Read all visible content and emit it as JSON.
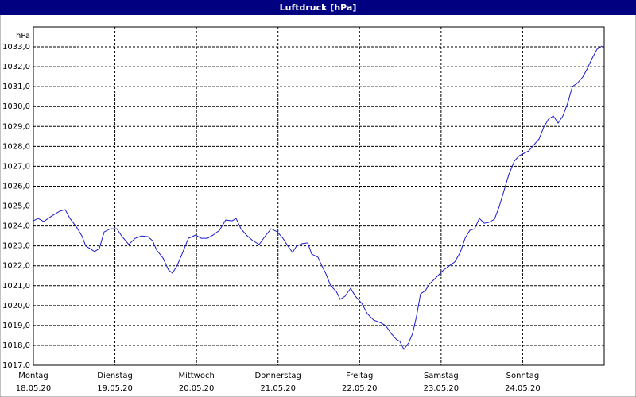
{
  "chart_data": {
    "type": "line",
    "title": "Luftdruck [hPa]",
    "y_label": "hPa",
    "xlim": [
      0,
      7
    ],
    "xticks": [
      {
        "value": 0,
        "label": "Montag",
        "date": "18.05.20"
      },
      {
        "value": 1,
        "label": "Dienstag",
        "date": "19.05.20"
      },
      {
        "value": 2,
        "label": "Mittwoch",
        "date": "20.05.20"
      },
      {
        "value": 3,
        "label": "Donnerstag",
        "date": "21.05.20"
      },
      {
        "value": 4,
        "label": "Freitag",
        "date": "22.05.20"
      },
      {
        "value": 5,
        "label": "Samstag",
        "date": "23.05.20"
      },
      {
        "value": 6,
        "label": "Sonntag",
        "date": "24.05.20"
      }
    ],
    "ylim": [
      1017,
      1034
    ],
    "yticks": [
      {
        "value": 1017,
        "label": "1017,0"
      },
      {
        "value": 1018,
        "label": "1018,0"
      },
      {
        "value": 1019,
        "label": "1019,0"
      },
      {
        "value": 1020,
        "label": "1020,0"
      },
      {
        "value": 1021,
        "label": "1021,0"
      },
      {
        "value": 1022,
        "label": "1022,0"
      },
      {
        "value": 1023,
        "label": "1023,0"
      },
      {
        "value": 1024,
        "label": "1024,0"
      },
      {
        "value": 1025,
        "label": "1025,0"
      },
      {
        "value": 1026,
        "label": "1026,0"
      },
      {
        "value": 1027,
        "label": "1027,0"
      },
      {
        "value": 1028,
        "label": "1028,0"
      },
      {
        "value": 1029,
        "label": "1029,0"
      },
      {
        "value": 1030,
        "label": "1030,0"
      },
      {
        "value": 1031,
        "label": "1031,0"
      },
      {
        "value": 1032,
        "label": "1032,0"
      },
      {
        "value": 1033,
        "label": "1033,0"
      }
    ],
    "grid": true,
    "x": [
      0,
      0.058,
      0.127,
      0.224,
      0.322,
      0.39,
      0.449,
      0.536,
      0.595,
      0.643,
      0.692,
      0.751,
      0.809,
      0.868,
      0.946,
      1.024,
      1.082,
      1.17,
      1.248,
      1.326,
      1.404,
      1.462,
      1.511,
      1.589,
      1.657,
      1.706,
      1.765,
      1.823,
      1.901,
      1.989,
      2.057,
      2.135,
      2.203,
      2.281,
      2.359,
      2.437,
      2.486,
      2.545,
      2.613,
      2.691,
      2.769,
      2.837,
      2.915,
      2.993,
      3.061,
      3.12,
      3.178,
      3.227,
      3.295,
      3.364,
      3.412,
      3.49,
      3.529,
      3.588,
      3.646,
      3.715,
      3.763,
      3.822,
      3.89,
      3.949,
      4.027,
      4.095,
      4.173,
      4.251,
      4.319,
      4.387,
      4.456,
      4.494,
      4.543,
      4.602,
      4.651,
      4.699,
      4.748,
      4.807,
      4.855,
      4.914,
      4.972,
      5.031,
      5.099,
      5.167,
      5.235,
      5.294,
      5.352,
      5.411,
      5.469,
      5.528,
      5.586,
      5.655,
      5.713,
      5.772,
      5.83,
      5.898,
      5.957,
      6.015,
      6.074,
      6.132,
      6.201,
      6.259,
      6.318,
      6.376,
      6.435,
      6.493,
      6.552,
      6.61,
      6.669,
      6.737,
      6.795,
      6.854,
      6.912,
      6.971
    ],
    "series": [
      {
        "name": "Luftdruck",
        "color": "#1a1acc",
        "values": [
          1024.26,
          1024.38,
          1024.22,
          1024.5,
          1024.74,
          1024.82,
          1024.38,
          1023.9,
          1023.5,
          1022.99,
          1022.87,
          1022.71,
          1022.87,
          1023.7,
          1023.86,
          1023.86,
          1023.5,
          1023.07,
          1023.38,
          1023.5,
          1023.46,
          1023.26,
          1022.79,
          1022.39,
          1021.79,
          1021.63,
          1022.03,
          1022.59,
          1023.38,
          1023.54,
          1023.38,
          1023.38,
          1023.54,
          1023.78,
          1024.3,
          1024.26,
          1024.38,
          1023.86,
          1023.54,
          1023.26,
          1023.07,
          1023.46,
          1023.86,
          1023.7,
          1023.38,
          1022.99,
          1022.67,
          1022.99,
          1023.11,
          1023.15,
          1022.59,
          1022.43,
          1022.07,
          1021.59,
          1020.99,
          1020.71,
          1020.31,
          1020.47,
          1020.87,
          1020.47,
          1020.11,
          1019.59,
          1019.27,
          1019.15,
          1019.0,
          1018.6,
          1018.28,
          1018.2,
          1017.8,
          1018.12,
          1018.6,
          1019.47,
          1020.59,
          1020.75,
          1021.07,
          1021.31,
          1021.55,
          1021.79,
          1021.99,
          1022.19,
          1022.67,
          1023.38,
          1023.78,
          1023.86,
          1024.38,
          1024.14,
          1024.18,
          1024.34,
          1024.98,
          1025.78,
          1026.58,
          1027.26,
          1027.53,
          1027.65,
          1027.77,
          1028.05,
          1028.37,
          1028.97,
          1029.37,
          1029.53,
          1029.17,
          1029.53,
          1030.17,
          1031.01,
          1031.17,
          1031.49,
          1031.92,
          1032.44,
          1032.88,
          1033.04
        ]
      }
    ]
  }
}
